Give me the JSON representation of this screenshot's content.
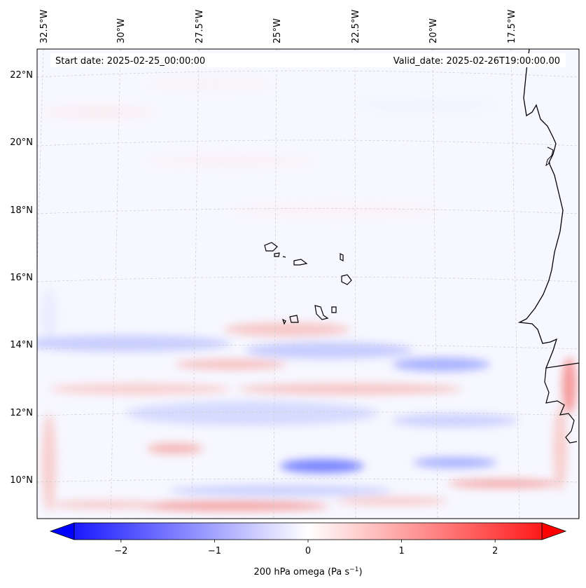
{
  "header": {
    "start_date": "Start date: 2025-02-25_00:00:00",
    "valid_date": "Valid_date: 2025-02-26T19:00:00.00"
  },
  "lon_labels": [
    "32.5°W",
    "30°W",
    "27.5°W",
    "25°W",
    "22.5°W",
    "20°W",
    "17.5°W"
  ],
  "lat_labels": [
    "22°N",
    "20°N",
    "18°N",
    "16°N",
    "14°N",
    "12°N",
    "10°N"
  ],
  "colorbar": {
    "ticks": [
      "−2",
      "−1",
      "0",
      "1",
      "2"
    ],
    "tick_values": [
      -2,
      -1,
      0,
      1,
      2
    ],
    "range": [
      -2.5,
      2.5
    ],
    "label": "200 hPa omega (Pa s",
    "label_sup": "−1",
    "label_close": ")",
    "colors": {
      "negative": "#0000ff",
      "zero": "#ffffff",
      "positive": "#ff0000"
    }
  },
  "map": {
    "field": "200 hPa omega",
    "coastline_color": "#000000",
    "gridline_color": "#c8c8c8"
  }
}
